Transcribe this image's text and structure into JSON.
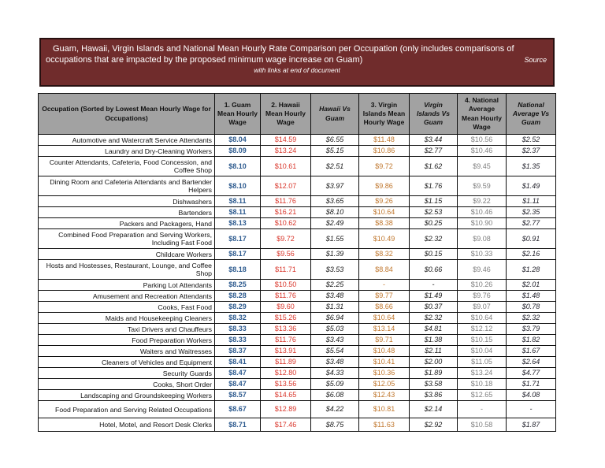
{
  "banner": {
    "title_line1": "Guam, Hawaii, Virgin Islands and National Mean Hourly Rate Comparison per Occupation (only includes comparisons of",
    "title_line2": "occupations that are impacted by the proposed minimum wage increase on Guam)",
    "source_label": "Source",
    "subtitle": "with links at end of document"
  },
  "colors": {
    "banner_bg": "#702C2C",
    "header_bg": "#A2A2A2",
    "guam": "#2E5B8F",
    "hawaii": "#D9362B",
    "virgin_islands": "#C0772E",
    "national": "#7F7F7F"
  },
  "table": {
    "headers": [
      "Occupation (Sorted by Lowest Mean Hourly Wage for Occupations)",
      "1. Guam Mean Hourly Wage",
      "2. Hawaii Mean Hourly Wage",
      "Hawaii Vs Guam",
      "3. Virgin Islands Mean Hourly Wage",
      "Virgin Islands Vs Guam",
      "4. National Average Mean Hourly Wage",
      "National Average Vs Guam"
    ],
    "rows": [
      [
        "Automotive and Watercraft Service Attendants",
        "$8.04",
        "$14.59",
        "$6.55",
        "$11.48",
        "$3.44",
        "$10.56",
        "$2.52"
      ],
      [
        "Laundry and Dry-Cleaning Workers",
        "$8.09",
        "$13.24",
        "$5.15",
        "$10.86",
        "$2.77",
        "$10.46",
        "$2.37"
      ],
      [
        "Counter Attendants, Cafeteria, Food Concession, and Coffee Shop",
        "$8.10",
        "$10.61",
        "$2.51",
        "$9.72",
        "$1.62",
        "$9.45",
        "$1.35"
      ],
      [
        "Dining Room and Cafeteria Attendants and Bartender Helpers",
        "$8.10",
        "$12.07",
        "$3.97",
        "$9.86",
        "$1.76",
        "$9.59",
        "$1.49"
      ],
      [
        "Dishwashers",
        "$8.11",
        "$11.76",
        "$3.65",
        "$9.26",
        "$1.15",
        "$9.22",
        "$1.11"
      ],
      [
        "Bartenders",
        "$8.11",
        "$16.21",
        "$8.10",
        "$10.64",
        "$2.53",
        "$10.46",
        "$2.35"
      ],
      [
        "Packers and Packagers, Hand",
        "$8.13",
        "$10.62",
        "$2.49",
        "$8.38",
        "$0.25",
        "$10.90",
        "$2.77"
      ],
      [
        "Combined Food Preparation and Serving Workers, Including Fast Food",
        "$8.17",
        "$9.72",
        "$1.55",
        "$10.49",
        "$2.32",
        "$9.08",
        "$0.91"
      ],
      [
        "Childcare Workers",
        "$8.17",
        "$9.56",
        "$1.39",
        "$8.32",
        "$0.15",
        "$10.33",
        "$2.16"
      ],
      [
        "Hosts and Hostesses, Restaurant, Lounge, and Coffee Shop",
        "$8.18",
        "$11.71",
        "$3.53",
        "$8.84",
        "$0.66",
        "$9.46",
        "$1.28"
      ],
      [
        "Parking Lot Attendants",
        "$8.25",
        "$10.50",
        "$2.25",
        "-",
        "-",
        "$10.26",
        "$2.01"
      ],
      [
        "Amusement and Recreation Attendants",
        "$8.28",
        "$11.76",
        "$3.48",
        "$9.77",
        "$1.49",
        "$9.76",
        "$1.48"
      ],
      [
        "Cooks, Fast Food",
        "$8.29",
        "$9.60",
        "$1.31",
        "$8.66",
        "$0.37",
        "$9.07",
        "$0.78"
      ],
      [
        "Maids and Housekeeping Cleaners",
        "$8.32",
        "$15.26",
        "$6.94",
        "$10.64",
        "$2.32",
        "$10.64",
        "$2.32"
      ],
      [
        "Taxi Drivers and Chauffeurs",
        "$8.33",
        "$13.36",
        "$5.03",
        "$13.14",
        "$4.81",
        "$12.12",
        "$3.79"
      ],
      [
        "Food Preparation Workers",
        "$8.33",
        "$11.76",
        "$3.43",
        "$9.71",
        "$1.38",
        "$10.15",
        "$1.82"
      ],
      [
        "Waiters and Waitresses",
        "$8.37",
        "$13.91",
        "$5.54",
        "$10.48",
        "$2.11",
        "$10.04",
        "$1.67"
      ],
      [
        "Cleaners of Vehicles and Equipment",
        "$8.41",
        "$11.89",
        "$3.48",
        "$10.41",
        "$2.00",
        "$11.05",
        "$2.64"
      ],
      [
        "Security Guards",
        "$8.47",
        "$12.80",
        "$4.33",
        "$10.36",
        "$1.89",
        "$13.24",
        "$4.77"
      ],
      [
        "Cooks, Short Order",
        "$8.47",
        "$13.56",
        "$5.09",
        "$12.05",
        "$3.58",
        "$10.18",
        "$1.71"
      ],
      [
        "Landscaping and Groundskeeping Workers",
        "$8.57",
        "$14.65",
        "$6.08",
        "$12.43",
        "$3.86",
        "$12.65",
        "$4.08"
      ],
      [
        "Food Preparation and Serving Related Occupations",
        "$8.67",
        "$12.89",
        "$4.22",
        "$10.81",
        "$2.14",
        "-",
        "-"
      ],
      [
        "Hotel, Motel, and Resort Desk Clerks",
        "$8.71",
        "$17.46",
        "$8.75",
        "$11.63",
        "$2.92",
        "$10.58",
        "$1.87"
      ]
    ]
  }
}
